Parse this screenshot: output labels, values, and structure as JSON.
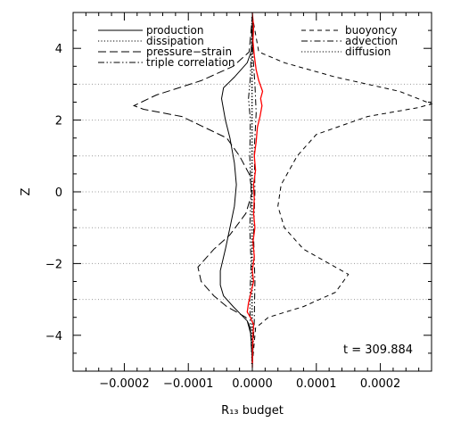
{
  "chart_data": {
    "type": "line",
    "title": "",
    "xlabel": "R₁₃ budget",
    "ylabel": "Z",
    "xlim": [
      -0.00028,
      0.00028
    ],
    "ylim": [
      -5,
      5
    ],
    "x_ticks": [
      -0.0002,
      -0.0001,
      0.0,
      0.0001,
      0.0002
    ],
    "x_tick_labels": [
      "−0.0002",
      "−0.0001",
      "0.0000",
      "0.0001",
      "0.0002"
    ],
    "y_ticks": [
      -4,
      -2,
      0,
      2,
      4
    ],
    "y_tick_labels": [
      "−4",
      "−2",
      "0",
      "2",
      "4"
    ],
    "grid_y": [
      -3,
      -2,
      -1,
      0,
      1,
      2,
      3
    ],
    "annotation": "t = 309.884",
    "legend": [
      {
        "name": "production",
        "style": "solid",
        "column": "left"
      },
      {
        "name": "dissipation",
        "style": "dotted",
        "column": "left"
      },
      {
        "name": "pressure−strain",
        "style": "dashed",
        "column": "left"
      },
      {
        "name": "triple correlation",
        "style": "dashdotdot",
        "column": "left"
      },
      {
        "name": "buoyoncy",
        "style": "shortdash",
        "column": "right"
      },
      {
        "name": "advection",
        "style": "dashdot",
        "column": "right"
      },
      {
        "name": "diffusion",
        "style": "dotted",
        "column": "right"
      }
    ],
    "series": [
      {
        "name": "production",
        "style": "solid",
        "color": "#000000",
        "points": [
          [
            0,
            -4.8
          ],
          [
            -2e-06,
            -4.0
          ],
          [
            -8e-06,
            -3.6
          ],
          [
            -3e-05,
            -3.2
          ],
          [
            -4.5e-05,
            -2.9
          ],
          [
            -5e-05,
            -2.6
          ],
          [
            -5e-05,
            -2.2
          ],
          [
            -4.2e-05,
            -1.6
          ],
          [
            -3.5e-05,
            -1.0
          ],
          [
            -2.8e-05,
            -0.4
          ],
          [
            -2.5e-05,
            0.2
          ],
          [
            -2.8e-05,
            0.8
          ],
          [
            -3.5e-05,
            1.5
          ],
          [
            -4.2e-05,
            2.0
          ],
          [
            -4.8e-05,
            2.6
          ],
          [
            -4.5e-05,
            2.9
          ],
          [
            -2.8e-05,
            3.2
          ],
          [
            -8e-06,
            3.6
          ],
          [
            0,
            4.0
          ],
          [
            0,
            4.9
          ]
        ]
      },
      {
        "name": "pressure−strain",
        "style": "dashed",
        "color": "#000000",
        "points": [
          [
            0,
            -4.8
          ],
          [
            -3e-06,
            -3.8
          ],
          [
            -1e-05,
            -3.5
          ],
          [
            -4e-05,
            -3.2
          ],
          [
            -6e-05,
            -2.9
          ],
          [
            -8e-05,
            -2.5
          ],
          [
            -8.5e-05,
            -2.1
          ],
          [
            -6e-05,
            -1.6
          ],
          [
            -3.5e-05,
            -1.2
          ],
          [
            -1e-05,
            -0.6
          ],
          [
            0,
            0.0
          ],
          [
            -5e-06,
            0.5
          ],
          [
            -2e-05,
            1.0
          ],
          [
            -4e-05,
            1.5
          ],
          [
            -0.00011,
            2.1
          ],
          [
            -0.00017,
            2.3
          ],
          [
            -0.000185,
            2.4
          ],
          [
            -0.00015,
            2.7
          ],
          [
            -8e-05,
            3.1
          ],
          [
            -3e-05,
            3.5
          ],
          [
            -5e-06,
            3.9
          ],
          [
            0,
            4.9
          ]
        ]
      },
      {
        "name": "buoyoncy",
        "style": "shortdash",
        "color": "#000000",
        "points": [
          [
            0,
            -4.8
          ],
          [
            5e-06,
            -3.8
          ],
          [
            2.5e-05,
            -3.5
          ],
          [
            8e-05,
            -3.2
          ],
          [
            0.00013,
            -2.8
          ],
          [
            0.00015,
            -2.3
          ],
          [
            0.00012,
            -2.0
          ],
          [
            8e-05,
            -1.6
          ],
          [
            5e-05,
            -1.0
          ],
          [
            4e-05,
            -0.4
          ],
          [
            4.5e-05,
            0.2
          ],
          [
            7e-05,
            1.0
          ],
          [
            0.0001,
            1.6
          ],
          [
            0.00018,
            2.1
          ],
          [
            0.00026,
            2.35
          ],
          [
            0.00028,
            2.45
          ],
          [
            0.00023,
            2.8
          ],
          [
            0.00013,
            3.2
          ],
          [
            5e-05,
            3.6
          ],
          [
            1e-05,
            3.9
          ],
          [
            0,
            4.9
          ]
        ]
      },
      {
        "name": "triple correlation",
        "style": "dashdotdot",
        "color": "#000000",
        "points": [
          [
            0,
            -4.8
          ],
          [
            -3e-06,
            -3.8
          ],
          [
            -4e-06,
            -3.0
          ],
          [
            -2e-06,
            -2.0
          ],
          [
            -4e-06,
            -1.0
          ],
          [
            -2e-06,
            0.0
          ],
          [
            -4e-06,
            1.0
          ],
          [
            -3e-06,
            2.0
          ],
          [
            -6e-06,
            2.6
          ],
          [
            -3e-06,
            3.2
          ],
          [
            0,
            4.9
          ]
        ]
      },
      {
        "name": "advection",
        "style": "dashdot",
        "color": "#000000",
        "points": [
          [
            0,
            -4.8
          ],
          [
            3e-06,
            -3.6
          ],
          [
            4e-06,
            -2.5
          ],
          [
            2e-06,
            -1.2
          ],
          [
            4e-06,
            0.0
          ],
          [
            3e-06,
            1.2
          ],
          [
            6e-06,
            2.2
          ],
          [
            4e-06,
            3.0
          ],
          [
            1e-06,
            3.8
          ],
          [
            0,
            4.9
          ]
        ]
      },
      {
        "name": "diffusion",
        "style": "dotted",
        "color": "#000000",
        "points": [
          [
            0,
            -4.8
          ],
          [
            0,
            4.9
          ]
        ]
      },
      {
        "name": "dissipation",
        "style": "dotted",
        "color": "#000000",
        "points": [
          [
            -1e-06,
            -4.8
          ],
          [
            -1e-06,
            4.9
          ]
        ]
      },
      {
        "name": "",
        "style": "solid",
        "color": "#ff0000",
        "points": [
          [
            0,
            -4.9
          ],
          [
            1e-06,
            -4.0
          ],
          [
            2e-06,
            -3.7
          ],
          [
            -3e-06,
            -3.5
          ],
          [
            -8e-06,
            -3.35
          ],
          [
            -6e-06,
            -3.1
          ],
          [
            -2e-06,
            -2.8
          ],
          [
            2e-06,
            -2.5
          ],
          [
            0.0,
            -2.2
          ],
          [
            3e-06,
            -1.8
          ],
          [
            1e-06,
            -1.4
          ],
          [
            4e-06,
            -1.0
          ],
          [
            2e-06,
            -0.6
          ],
          [
            3e-06,
            -0.2
          ],
          [
            2e-06,
            0.2
          ],
          [
            5e-06,
            0.6
          ],
          [
            3e-06,
            1.0
          ],
          [
            6e-06,
            1.4
          ],
          [
            8e-06,
            1.8
          ],
          [
            1.2e-05,
            2.1
          ],
          [
            1.5e-05,
            2.4
          ],
          [
            1.3e-05,
            2.6
          ],
          [
            1.6e-05,
            2.8
          ],
          [
            1e-05,
            3.1
          ],
          [
            6e-06,
            3.4
          ],
          [
            3e-06,
            3.8
          ],
          [
            1e-06,
            4.2
          ],
          [
            2e-06,
            4.6
          ],
          [
            0.0,
            5.0
          ]
        ]
      }
    ]
  }
}
